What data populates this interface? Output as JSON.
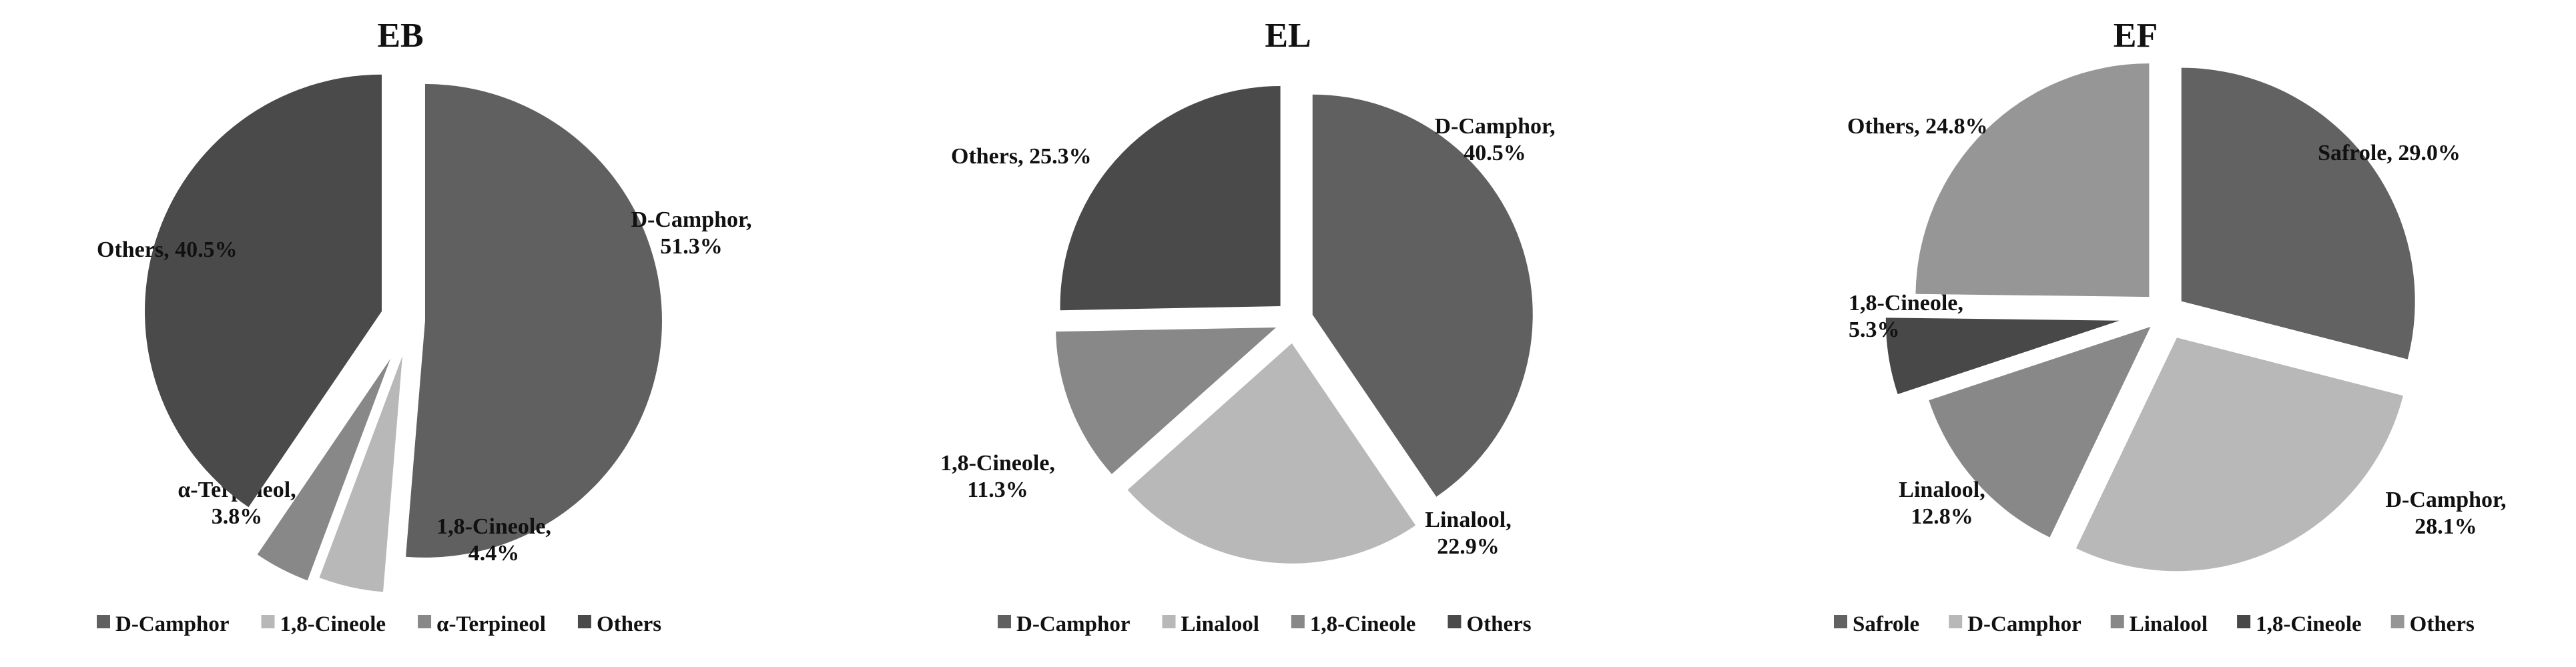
{
  "chart_data": [
    {
      "type": "pie",
      "title": "EB",
      "legend_position": "bottom",
      "slices": [
        {
          "name": "D-Camphor",
          "value": 51.3,
          "label_lines": [
            "D-Camphor,",
            "51.3%"
          ],
          "color": "#606060"
        },
        {
          "name": "1,8-Cineole",
          "value": 4.4,
          "label_lines": [
            "1,8-Cineole,",
            "4.4%"
          ],
          "color": "#b8b8b8"
        },
        {
          "name": "α-Terpineol",
          "value": 3.8,
          "label_lines": [
            "α-Terpineol,",
            "3.8%"
          ],
          "color": "#888888"
        },
        {
          "name": "Others",
          "value": 40.5,
          "label_lines": [
            "Others, 40.5%"
          ],
          "color": "#4a4a4a"
        }
      ]
    },
    {
      "type": "pie",
      "title": "EL",
      "legend_position": "bottom",
      "slices": [
        {
          "name": "D-Camphor",
          "value": 40.5,
          "label_lines": [
            "D-Camphor,",
            "40.5%"
          ],
          "color": "#606060"
        },
        {
          "name": "Linalool",
          "value": 22.9,
          "label_lines": [
            "Linalool,",
            "22.9%"
          ],
          "color": "#b8b8b8"
        },
        {
          "name": "1,8-Cineole",
          "value": 11.3,
          "label_lines": [
            "1,8-Cineole,",
            "11.3%"
          ],
          "color": "#888888"
        },
        {
          "name": "Others",
          "value": 25.3,
          "label_lines": [
            "Others, 25.3%"
          ],
          "color": "#4a4a4a"
        }
      ]
    },
    {
      "type": "pie",
      "title": "EF",
      "legend_position": "bottom",
      "slices": [
        {
          "name": "Safrole",
          "value": 29.0,
          "label_lines": [
            "Safrole, 29.0%"
          ],
          "color": "#626262"
        },
        {
          "name": "D-Camphor",
          "value": 28.1,
          "label_lines": [
            "D-Camphor,",
            "28.1%"
          ],
          "color": "#b8b8b8"
        },
        {
          "name": "Linalool",
          "value": 12.8,
          "label_lines": [
            "Linalool,",
            "12.8%"
          ],
          "color": "#888888"
        },
        {
          "name": "1,8-Cineole",
          "value": 5.3,
          "label_lines": [
            "1,8-Cineole,",
            "5.3%"
          ],
          "color": "#484848"
        },
        {
          "name": "Others",
          "value": 24.8,
          "label_lines": [
            "Others, 24.8%"
          ],
          "color": "#969696"
        }
      ]
    }
  ]
}
